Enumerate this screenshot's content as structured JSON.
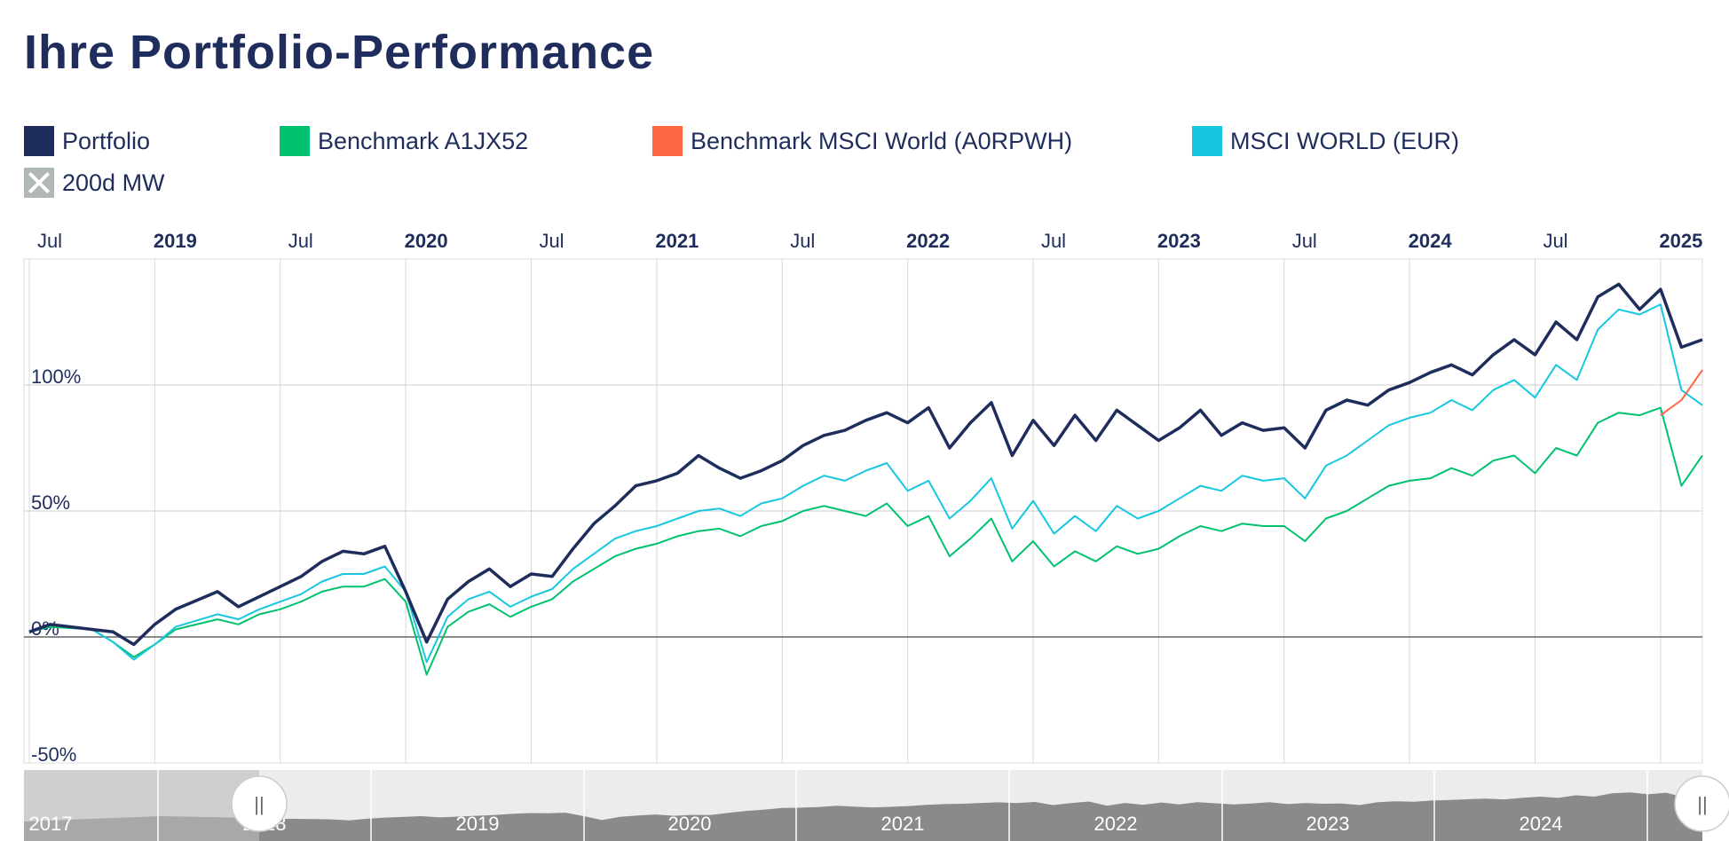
{
  "page_title": "Ihre Portfolio-Performance",
  "legend": [
    {
      "label": "Portfolio",
      "color": "#1f2d5c",
      "hidden": false
    },
    {
      "label": "Benchmark A1JX52",
      "color": "#00c26e",
      "hidden": false
    },
    {
      "label": "Benchmark MSCI World (A0RPWH)",
      "color": "#ff6644",
      "hidden": false
    },
    {
      "label": "MSCI WORLD (EUR)",
      "color": "#17c7e0",
      "hidden": false
    },
    {
      "label": "200d MW",
      "color": "#b0b8b8",
      "hidden": true
    }
  ],
  "navigator": {
    "year_labels": [
      "2017",
      "2018",
      "2019",
      "2020",
      "2021",
      "2022",
      "2023",
      "2024"
    ],
    "handle_symbol": "||"
  },
  "chart_data": {
    "type": "line",
    "title": "Ihre Portfolio-Performance",
    "x_tick_labels": [
      {
        "label": "Jul",
        "bold": false
      },
      {
        "label": "2019",
        "bold": true
      },
      {
        "label": "Jul",
        "bold": false
      },
      {
        "label": "2020",
        "bold": true
      },
      {
        "label": "Jul",
        "bold": false
      },
      {
        "label": "2021",
        "bold": true
      },
      {
        "label": "Jul",
        "bold": false
      },
      {
        "label": "2022",
        "bold": true
      },
      {
        "label": "Jul",
        "bold": false
      },
      {
        "label": "2023",
        "bold": true
      },
      {
        "label": "Jul",
        "bold": false
      },
      {
        "label": "2024",
        "bold": true
      },
      {
        "label": "Jul",
        "bold": false
      },
      {
        "label": "2025",
        "bold": true
      }
    ],
    "y_tick_labels": [
      "100%",
      "50%",
      "0%",
      "-50%"
    ],
    "y_ticks": [
      100,
      50,
      0,
      -50
    ],
    "ylim": [
      -50,
      150
    ],
    "xlim": [
      "2018-07",
      "2025-03"
    ],
    "grid": true,
    "legend_position": "top",
    "series": [
      {
        "name": "Portfolio",
        "color": "#1f2d5c",
        "x": [
          "2018-07",
          "2018-08",
          "2018-10",
          "2018-11",
          "2018-12",
          "2019-01",
          "2019-02",
          "2019-04",
          "2019-05",
          "2019-06",
          "2019-07",
          "2019-08",
          "2019-09",
          "2019-10",
          "2019-11",
          "2019-12",
          "2020-01",
          "2020-02",
          "2020-03",
          "2020-04",
          "2020-05",
          "2020-06",
          "2020-07",
          "2020-08",
          "2020-09",
          "2020-10",
          "2020-11",
          "2020-12",
          "2021-01",
          "2021-02",
          "2021-03",
          "2021-04",
          "2021-05",
          "2021-06",
          "2021-07",
          "2021-08",
          "2021-09",
          "2021-10",
          "2021-11",
          "2021-12",
          "2022-01",
          "2022-02",
          "2022-03",
          "2022-04",
          "2022-05",
          "2022-06",
          "2022-07",
          "2022-08",
          "2022-09",
          "2022-10",
          "2022-11",
          "2022-12",
          "2023-01",
          "2023-02",
          "2023-03",
          "2023-04",
          "2023-05",
          "2023-06",
          "2023-07",
          "2023-08",
          "2023-09",
          "2023-10",
          "2023-11",
          "2023-12",
          "2024-01",
          "2024-02",
          "2024-03",
          "2024-04",
          "2024-05",
          "2024-06",
          "2024-07",
          "2024-08",
          "2024-09",
          "2024-10",
          "2024-11",
          "2024-12",
          "2025-01",
          "2025-02",
          "2025-03"
        ],
        "y": [
          2,
          5,
          3,
          2,
          -3,
          5,
          11,
          18,
          12,
          16,
          20,
          24,
          30,
          34,
          33,
          36,
          18,
          -2,
          15,
          22,
          27,
          20,
          25,
          24,
          35,
          45,
          52,
          60,
          62,
          65,
          72,
          67,
          63,
          66,
          70,
          76,
          80,
          82,
          86,
          89,
          85,
          91,
          75,
          85,
          93,
          72,
          86,
          76,
          88,
          78,
          90,
          84,
          78,
          83,
          90,
          80,
          85,
          82,
          83,
          75,
          90,
          94,
          92,
          98,
          101,
          105,
          108,
          104,
          112,
          118,
          112,
          125,
          118,
          135,
          140,
          130,
          138,
          115,
          118
        ]
      },
      {
        "name": "Benchmark A1JX52",
        "color": "#00c26e",
        "x": [
          "2018-07",
          "2018-08",
          "2018-10",
          "2018-11",
          "2018-12",
          "2019-01",
          "2019-02",
          "2019-04",
          "2019-05",
          "2019-06",
          "2019-07",
          "2019-08",
          "2019-09",
          "2019-10",
          "2019-11",
          "2019-12",
          "2020-01",
          "2020-02",
          "2020-03",
          "2020-04",
          "2020-05",
          "2020-06",
          "2020-07",
          "2020-08",
          "2020-09",
          "2020-10",
          "2020-11",
          "2020-12",
          "2021-01",
          "2021-02",
          "2021-03",
          "2021-04",
          "2021-05",
          "2021-06",
          "2021-07",
          "2021-08",
          "2021-09",
          "2021-10",
          "2021-11",
          "2021-12",
          "2022-01",
          "2022-02",
          "2022-03",
          "2022-04",
          "2022-05",
          "2022-06",
          "2022-07",
          "2022-08",
          "2022-09",
          "2022-10",
          "2022-11",
          "2022-12",
          "2023-01",
          "2023-02",
          "2023-03",
          "2023-04",
          "2023-05",
          "2023-06",
          "2023-07",
          "2023-08",
          "2023-09",
          "2023-10",
          "2023-11",
          "2023-12",
          "2024-01",
          "2024-02",
          "2024-03",
          "2024-04",
          "2024-05",
          "2024-06",
          "2024-07",
          "2024-08",
          "2024-09",
          "2024-10",
          "2024-11",
          "2024-12",
          "2025-01",
          "2025-02",
          "2025-03"
        ],
        "y": [
          2,
          4,
          3,
          -2,
          -8,
          -3,
          3,
          7,
          5,
          9,
          11,
          14,
          18,
          20,
          20,
          23,
          14,
          -15,
          4,
          10,
          13,
          8,
          12,
          15,
          22,
          27,
          32,
          35,
          37,
          40,
          42,
          43,
          40,
          44,
          46,
          50,
          52,
          50,
          48,
          53,
          44,
          48,
          32,
          39,
          47,
          30,
          38,
          28,
          34,
          30,
          36,
          33,
          35,
          40,
          44,
          42,
          45,
          44,
          44,
          38,
          47,
          50,
          55,
          60,
          62,
          63,
          67,
          64,
          70,
          72,
          65,
          75,
          72,
          85,
          89,
          88,
          91,
          60,
          72
        ]
      },
      {
        "name": "Benchmark MSCI World (A0RPWH)",
        "color": "#ff6644",
        "x": [
          "2025-01",
          "2025-02",
          "2025-03"
        ],
        "y": [
          88,
          94,
          106
        ]
      },
      {
        "name": "MSCI WORLD (EUR)",
        "color": "#17c7e0",
        "x": [
          "2018-07",
          "2018-08",
          "2018-10",
          "2018-11",
          "2018-12",
          "2019-01",
          "2019-02",
          "2019-04",
          "2019-05",
          "2019-06",
          "2019-07",
          "2019-08",
          "2019-09",
          "2019-10",
          "2019-11",
          "2019-12",
          "2020-01",
          "2020-02",
          "2020-03",
          "2020-04",
          "2020-05",
          "2020-06",
          "2020-07",
          "2020-08",
          "2020-09",
          "2020-10",
          "2020-11",
          "2020-12",
          "2021-01",
          "2021-02",
          "2021-03",
          "2021-04",
          "2021-05",
          "2021-06",
          "2021-07",
          "2021-08",
          "2021-09",
          "2021-10",
          "2021-11",
          "2021-12",
          "2022-01",
          "2022-02",
          "2022-03",
          "2022-04",
          "2022-05",
          "2022-06",
          "2022-07",
          "2022-08",
          "2022-09",
          "2022-10",
          "2022-11",
          "2022-12",
          "2023-01",
          "2023-02",
          "2023-03",
          "2023-04",
          "2023-05",
          "2023-06",
          "2023-07",
          "2023-08",
          "2023-09",
          "2023-10",
          "2023-11",
          "2023-12",
          "2024-01",
          "2024-02",
          "2024-03",
          "2024-04",
          "2024-05",
          "2024-06",
          "2024-07",
          "2024-08",
          "2024-09",
          "2024-10",
          "2024-11",
          "2024-12",
          "2025-01",
          "2025-02",
          "2025-03"
        ],
        "y": [
          2,
          5,
          3,
          -2,
          -9,
          -3,
          4,
          9,
          7,
          11,
          14,
          17,
          22,
          25,
          25,
          28,
          18,
          -10,
          8,
          15,
          18,
          12,
          16,
          19,
          27,
          33,
          39,
          42,
          44,
          47,
          50,
          51,
          48,
          53,
          55,
          60,
          64,
          62,
          66,
          69,
          58,
          62,
          47,
          54,
          63,
          43,
          54,
          41,
          48,
          42,
          52,
          47,
          50,
          55,
          60,
          58,
          64,
          62,
          63,
          55,
          68,
          72,
          78,
          84,
          87,
          89,
          94,
          90,
          98,
          102,
          95,
          108,
          102,
          122,
          130,
          128,
          132,
          98,
          92
        ]
      }
    ]
  }
}
